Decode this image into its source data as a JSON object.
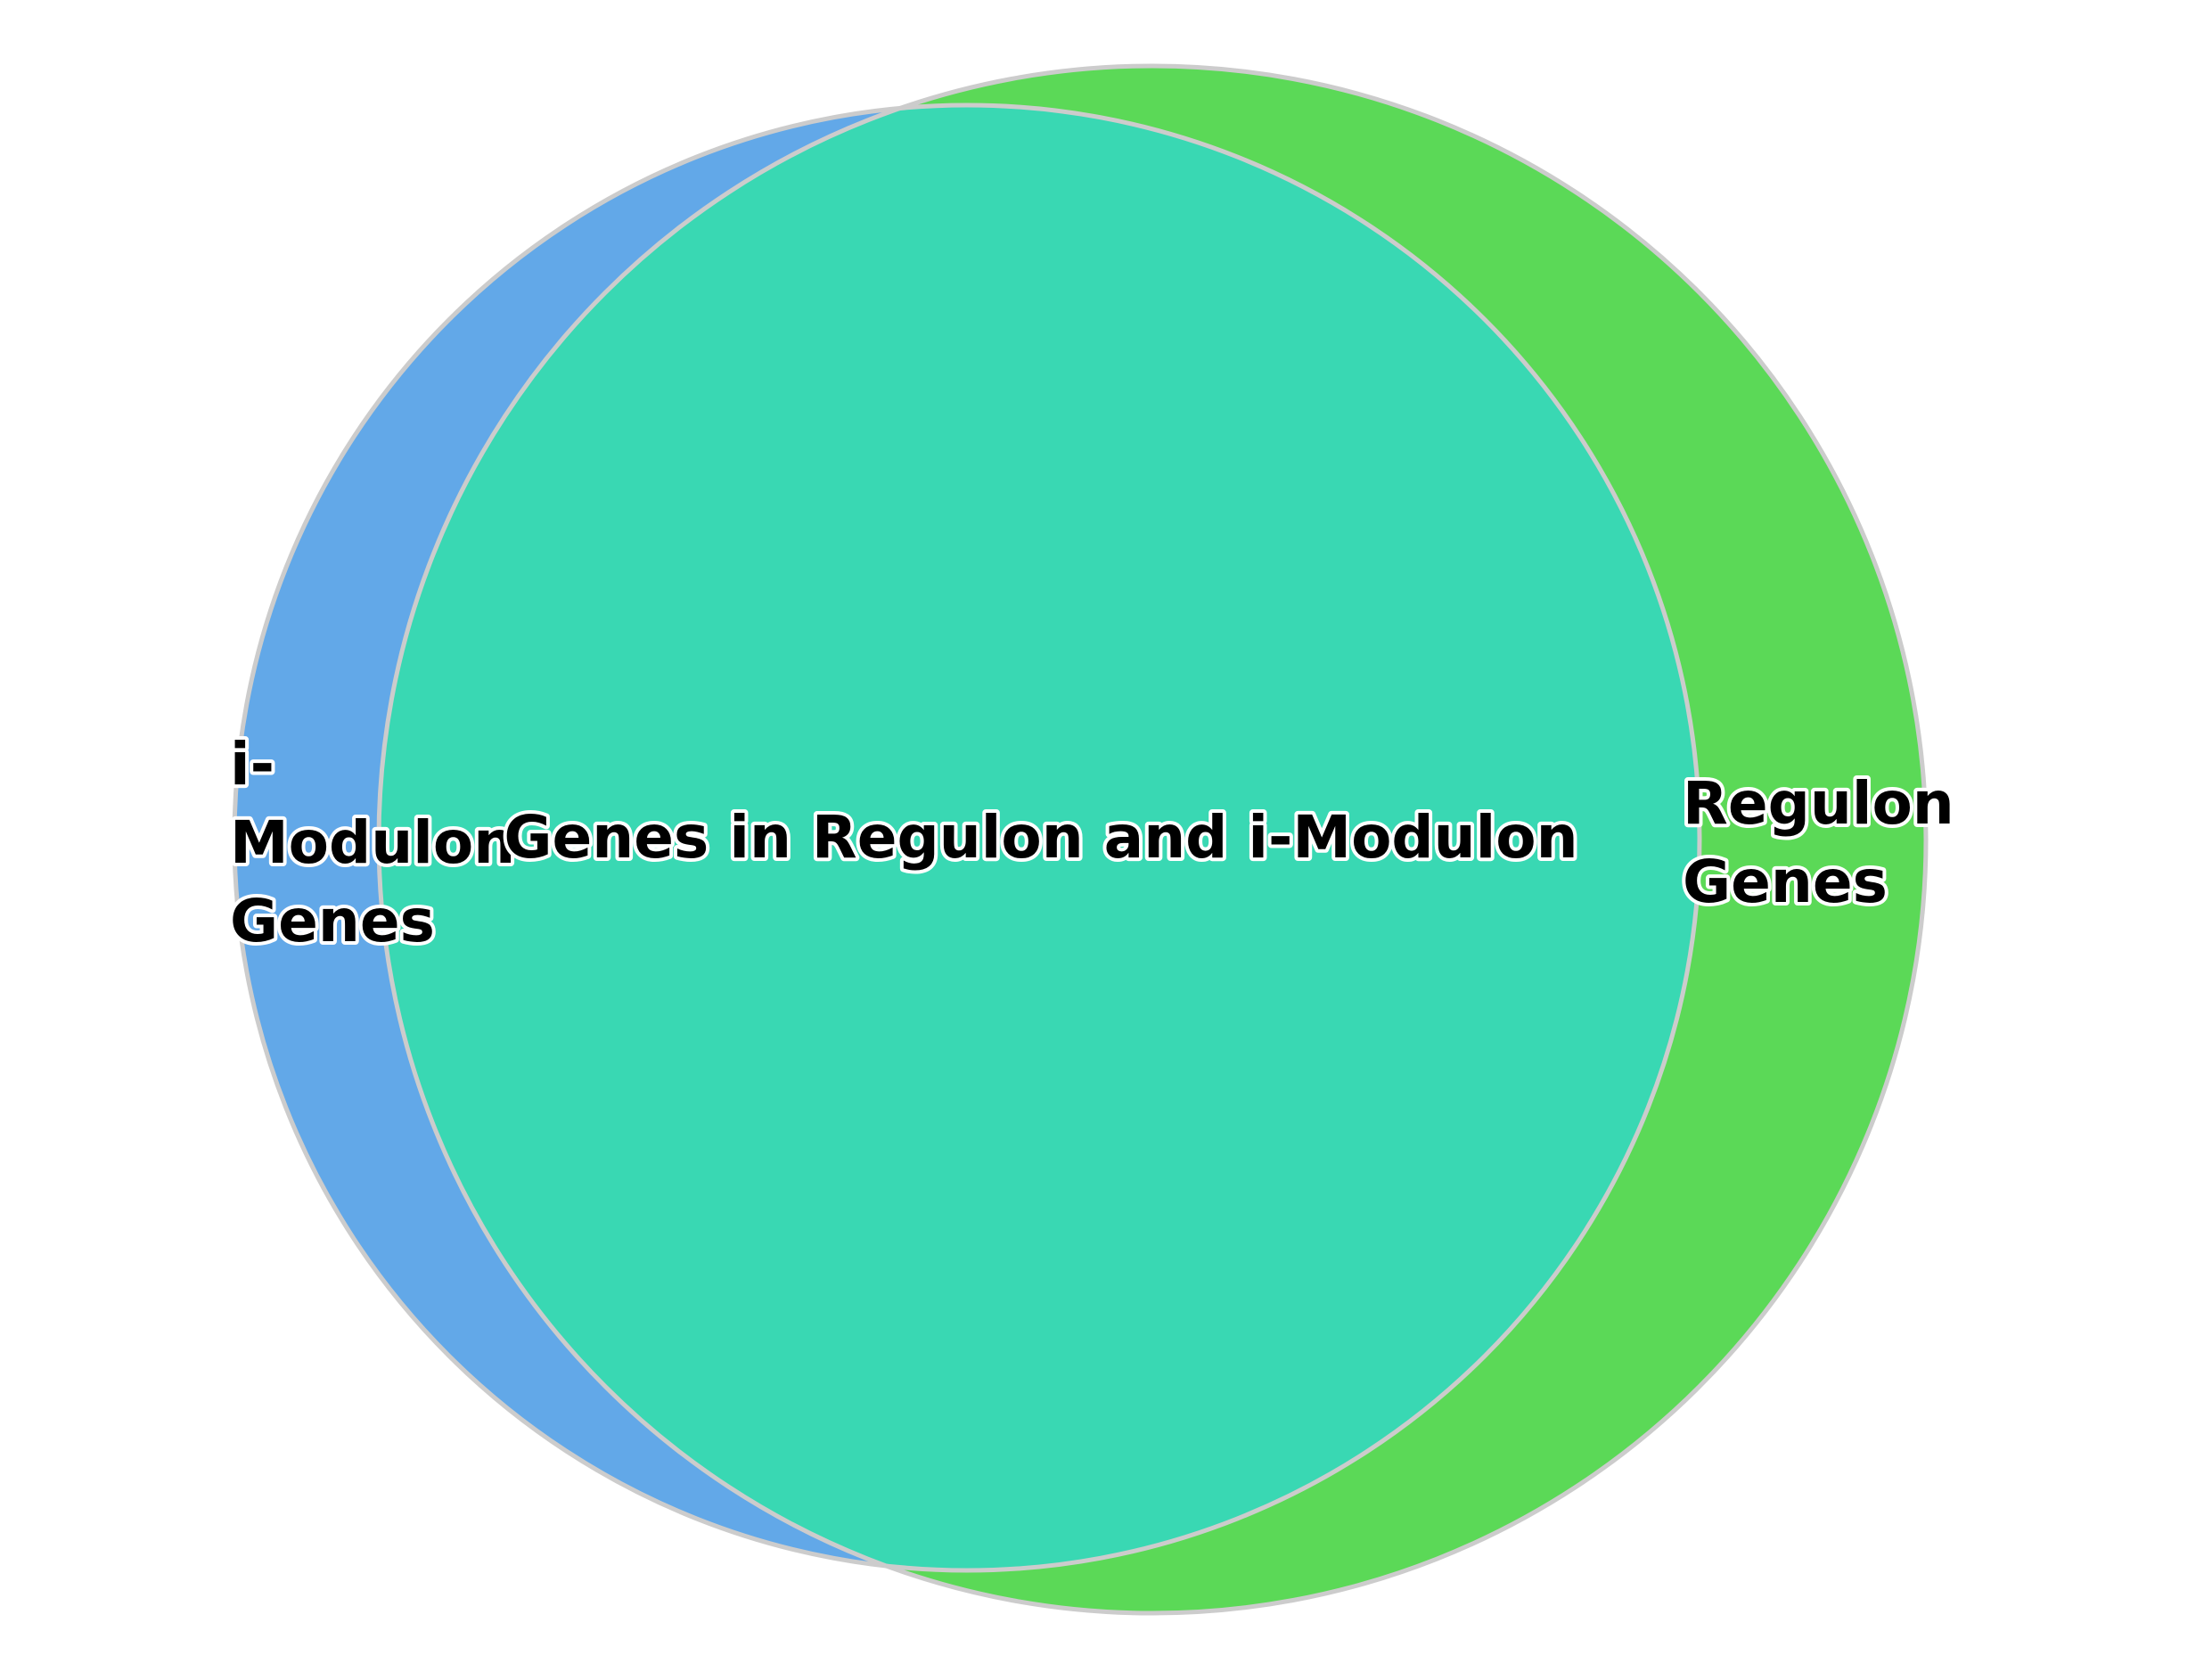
{
  "diagram": {
    "type": "venn",
    "sets": [
      {
        "id": "imodulon",
        "label_lines": [
          "i-",
          "Modulon",
          "Genes"
        ],
        "color": "#62a8e8"
      },
      {
        "id": "regulon",
        "label_lines": [
          "Regulon",
          "Genes"
        ],
        "color": "#5bd957"
      }
    ],
    "intersection": {
      "label": "Genes in Regulon and i-Modulon",
      "color": "#39d8b3"
    },
    "outline_color": "#cccccc"
  }
}
